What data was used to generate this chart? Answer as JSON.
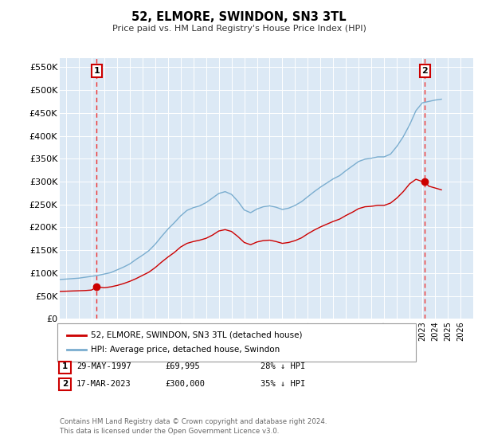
{
  "title": "52, ELMORE, SWINDON, SN3 3TL",
  "subtitle": "Price paid vs. HM Land Registry's House Price Index (HPI)",
  "plot_bg_color": "#dce9f5",
  "ylim": [
    0,
    570000
  ],
  "yticks": [
    0,
    50000,
    100000,
    150000,
    200000,
    250000,
    300000,
    350000,
    400000,
    450000,
    500000,
    550000
  ],
  "ytick_labels": [
    "£0",
    "£50K",
    "£100K",
    "£150K",
    "£200K",
    "£250K",
    "£300K",
    "£350K",
    "£400K",
    "£450K",
    "£500K",
    "£550K"
  ],
  "xlim_start": 1994.5,
  "xlim_end": 2027.0,
  "transaction1_x": 1997.41,
  "transaction1_y": 69995,
  "transaction2_x": 2023.21,
  "transaction2_y": 300000,
  "red_line_color": "#cc0000",
  "blue_line_color": "#7aadcf",
  "dashed_line_color": "#ee3333",
  "legend_label_red": "52, ELMORE, SWINDON, SN3 3TL (detached house)",
  "legend_label_blue": "HPI: Average price, detached house, Swindon",
  "footer": "Contains HM Land Registry data © Crown copyright and database right 2024.\nThis data is licensed under the Open Government Licence v3.0.",
  "hpi_x": [
    1994.5,
    1995.0,
    1995.5,
    1996.0,
    1996.5,
    1997.0,
    1997.5,
    1998.0,
    1998.5,
    1999.0,
    1999.5,
    2000.0,
    2000.5,
    2001.0,
    2001.5,
    2002.0,
    2002.5,
    2003.0,
    2003.5,
    2004.0,
    2004.5,
    2005.0,
    2005.5,
    2006.0,
    2006.5,
    2007.0,
    2007.5,
    2008.0,
    2008.5,
    2009.0,
    2009.5,
    2010.0,
    2010.5,
    2011.0,
    2011.5,
    2012.0,
    2012.5,
    2013.0,
    2013.5,
    2014.0,
    2014.5,
    2015.0,
    2015.5,
    2016.0,
    2016.5,
    2017.0,
    2017.5,
    2018.0,
    2018.5,
    2019.0,
    2019.5,
    2020.0,
    2020.5,
    2021.0,
    2021.5,
    2022.0,
    2022.5,
    2023.0,
    2023.5,
    2024.0,
    2024.5
  ],
  "hpi_y": [
    86000,
    87000,
    88000,
    89000,
    91000,
    93000,
    95000,
    98000,
    101000,
    107000,
    113000,
    120000,
    130000,
    139000,
    149000,
    163000,
    180000,
    196000,
    210000,
    225000,
    237000,
    243000,
    247000,
    254000,
    264000,
    274000,
    278000,
    272000,
    257000,
    238000,
    232000,
    240000,
    245000,
    247000,
    244000,
    239000,
    242000,
    248000,
    256000,
    267000,
    278000,
    288000,
    297000,
    306000,
    313000,
    324000,
    334000,
    344000,
    349000,
    351000,
    354000,
    354000,
    360000,
    377000,
    398000,
    424000,
    455000,
    472000,
    475000,
    478000,
    480000
  ],
  "red_x": [
    1994.5,
    1995.0,
    1995.5,
    1996.0,
    1996.5,
    1997.0,
    1997.41,
    1998.0,
    1998.5,
    1999.0,
    1999.5,
    2000.0,
    2000.5,
    2001.0,
    2001.5,
    2002.0,
    2002.5,
    2003.0,
    2003.5,
    2004.0,
    2004.5,
    2005.0,
    2005.5,
    2006.0,
    2006.5,
    2007.0,
    2007.5,
    2008.0,
    2008.5,
    2009.0,
    2009.5,
    2010.0,
    2010.5,
    2011.0,
    2011.5,
    2012.0,
    2012.5,
    2013.0,
    2013.5,
    2014.0,
    2014.5,
    2015.0,
    2015.5,
    2016.0,
    2016.5,
    2017.0,
    2017.5,
    2018.0,
    2018.5,
    2019.0,
    2019.5,
    2020.0,
    2020.5,
    2021.0,
    2021.5,
    2022.0,
    2022.5,
    2023.0,
    2023.21,
    2023.5,
    2024.0,
    2024.5
  ],
  "red_y": [
    60000,
    60500,
    61000,
    61500,
    62000,
    63000,
    69995,
    68000,
    70000,
    73000,
    77000,
    82000,
    88000,
    95000,
    102000,
    112000,
    124000,
    135000,
    145000,
    157000,
    165000,
    169000,
    172000,
    176000,
    183000,
    192000,
    195000,
    191000,
    180000,
    167000,
    162000,
    168000,
    171000,
    172000,
    169000,
    165000,
    167000,
    171000,
    177000,
    186000,
    194000,
    201000,
    207000,
    213000,
    218000,
    226000,
    233000,
    241000,
    245000,
    246000,
    248000,
    248000,
    253000,
    264000,
    278000,
    295000,
    305000,
    300000,
    300000,
    290000,
    286000,
    282000
  ]
}
